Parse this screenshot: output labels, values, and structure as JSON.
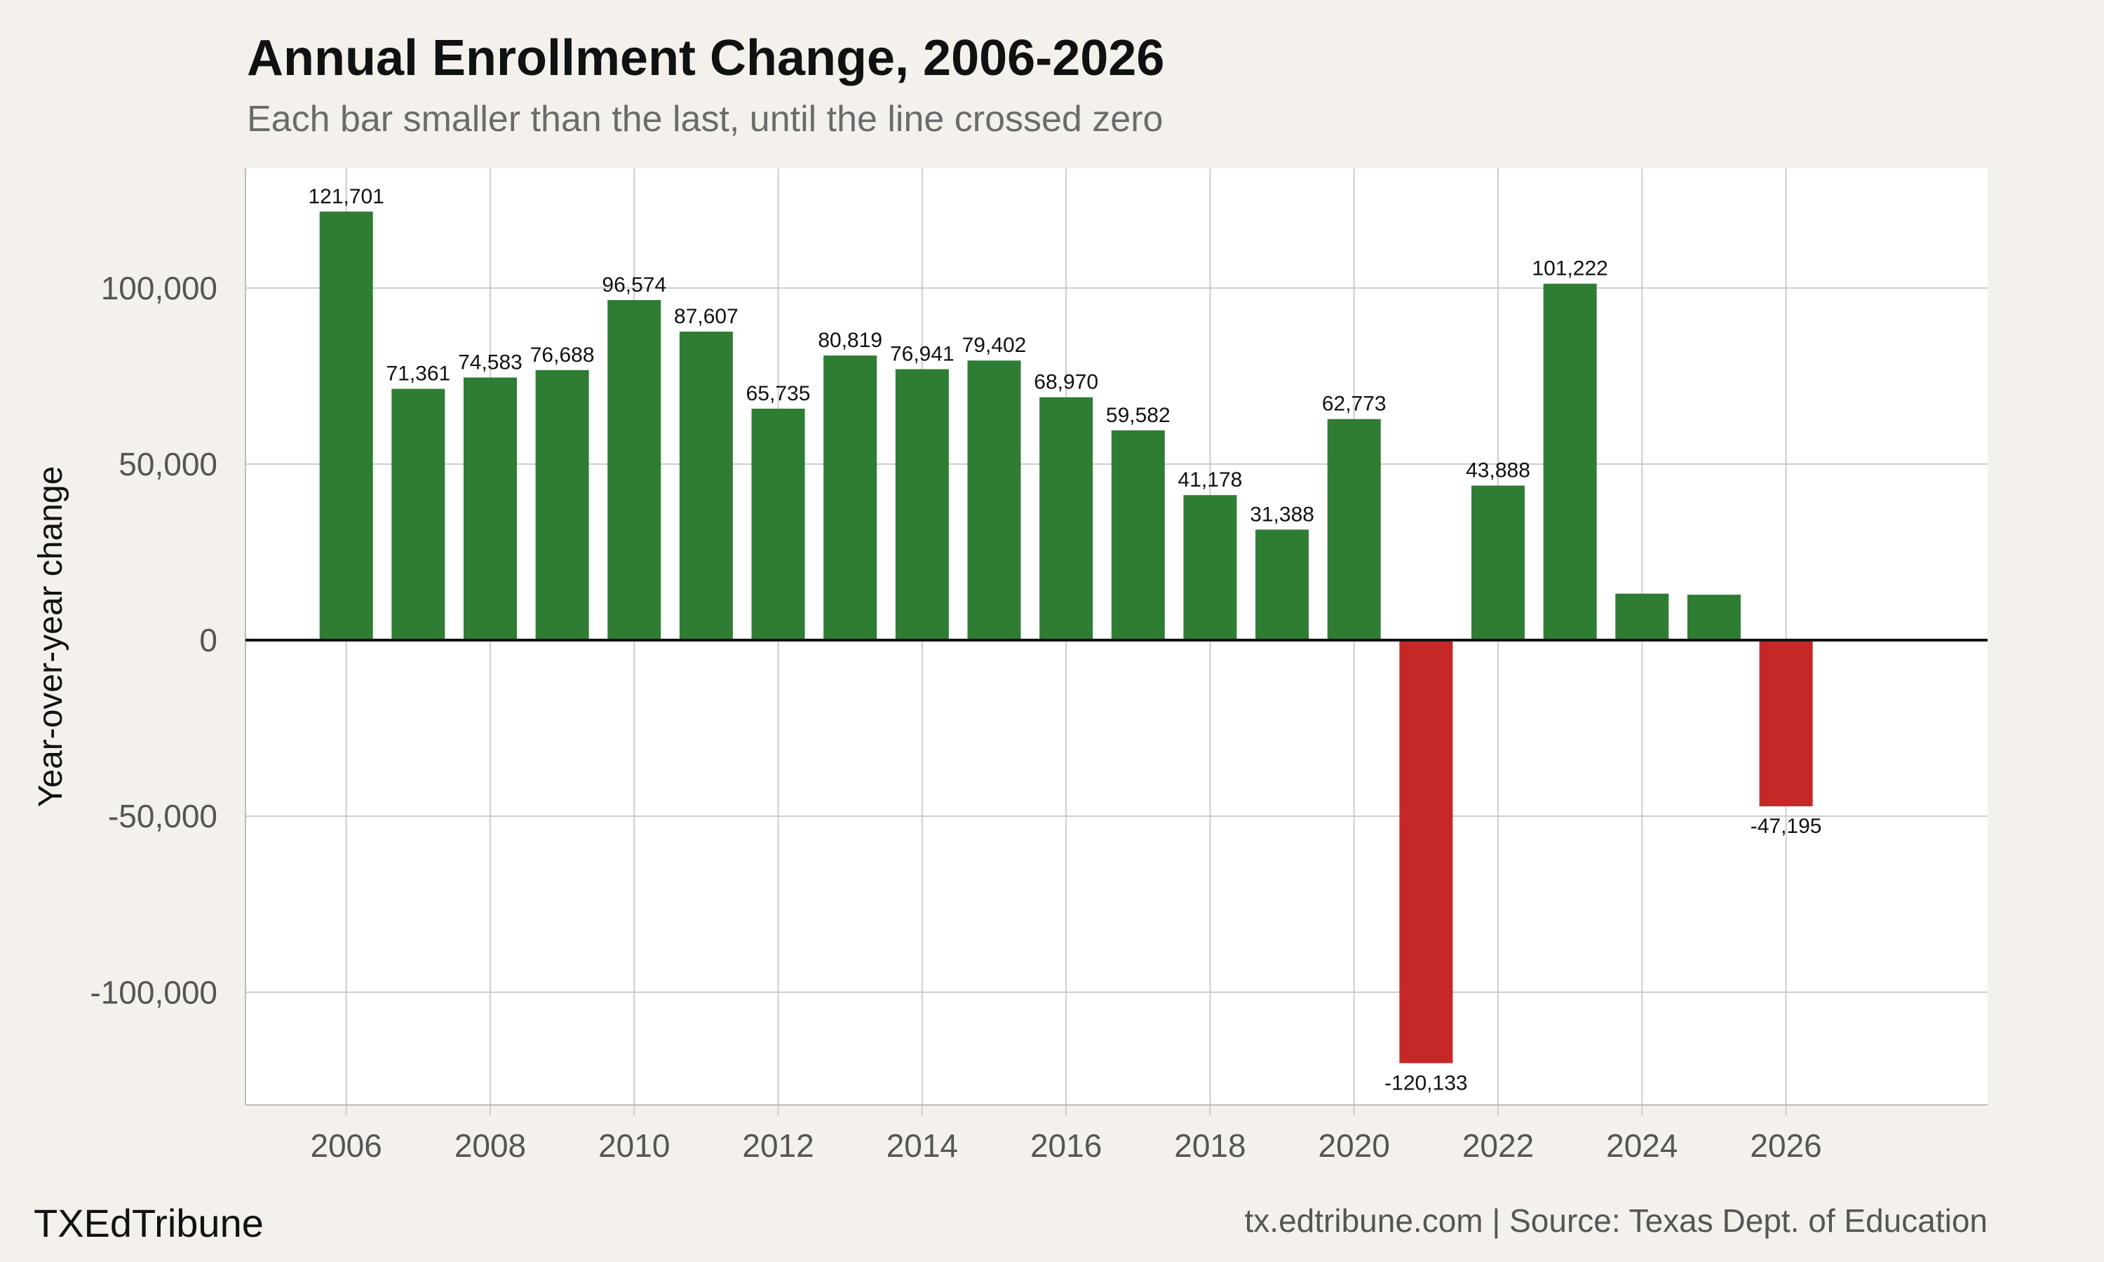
{
  "title": "Annual Enrollment Change, 2006-2026",
  "subtitle": "Each bar smaller than the last, until the line crossed zero",
  "brand": "TXEdTribune",
  "source": "tx.edtribune.com | Source: Texas Dept. of Education",
  "colors": {
    "positive": "#2e7d32",
    "negative": "#c62828",
    "background": "#f4f1ec",
    "plot_background": "#ffffff",
    "grid": "#cccccc"
  },
  "chart_data": {
    "type": "bar",
    "ylabel": "Year-over-year change",
    "xlabel": "",
    "ylim": [
      -132000,
      134000
    ],
    "xlim": [
      2004.6,
      2028.8
    ],
    "grid": true,
    "legend": "none",
    "yticks": [
      {
        "value": 100000,
        "label": "100,000"
      },
      {
        "value": 50000,
        "label": "50,000"
      },
      {
        "value": 0,
        "label": "0"
      },
      {
        "value": -50000,
        "label": "-50,000"
      },
      {
        "value": -100000,
        "label": "-100,000"
      }
    ],
    "xticks": [
      {
        "value": 2006,
        "label": "2006"
      },
      {
        "value": 2008,
        "label": "2008"
      },
      {
        "value": 2010,
        "label": "2010"
      },
      {
        "value": 2012,
        "label": "2012"
      },
      {
        "value": 2014,
        "label": "2014"
      },
      {
        "value": 2016,
        "label": "2016"
      },
      {
        "value": 2018,
        "label": "2018"
      },
      {
        "value": 2020,
        "label": "2020"
      },
      {
        "value": 2022,
        "label": "2022"
      },
      {
        "value": 2024,
        "label": "2024"
      },
      {
        "value": 2026,
        "label": "2026"
      }
    ],
    "bars": [
      {
        "x": 2006,
        "value": 121701,
        "label": "121,701"
      },
      {
        "x": 2007,
        "value": 71361,
        "label": "71,361"
      },
      {
        "x": 2008,
        "value": 74583,
        "label": "74,583"
      },
      {
        "x": 2009,
        "value": 76688,
        "label": "76,688"
      },
      {
        "x": 2010,
        "value": 96574,
        "label": "96,574"
      },
      {
        "x": 2011,
        "value": 87607,
        "label": "87,607"
      },
      {
        "x": 2012,
        "value": 65735,
        "label": "65,735"
      },
      {
        "x": 2013,
        "value": 80819,
        "label": "80,819"
      },
      {
        "x": 2014,
        "value": 76941,
        "label": "76,941"
      },
      {
        "x": 2015,
        "value": 79402,
        "label": "79,402"
      },
      {
        "x": 2016,
        "value": 68970,
        "label": "68,970"
      },
      {
        "x": 2017,
        "value": 59582,
        "label": "59,582"
      },
      {
        "x": 2018,
        "value": 41178,
        "label": "41,178"
      },
      {
        "x": 2019,
        "value": 31388,
        "label": "31,388"
      },
      {
        "x": 2020,
        "value": 62773,
        "label": "62,773"
      },
      {
        "x": 2021,
        "value": -120133,
        "label": "-120,133"
      },
      {
        "x": 2022,
        "value": 43888,
        "label": "43,888"
      },
      {
        "x": 2023,
        "value": 101222,
        "label": "101,222"
      },
      {
        "x": 2024,
        "value": 13200,
        "label": ""
      },
      {
        "x": 2025,
        "value": 12900,
        "label": ""
      },
      {
        "x": 2026,
        "value": -47195,
        "label": "-47,195"
      }
    ]
  }
}
